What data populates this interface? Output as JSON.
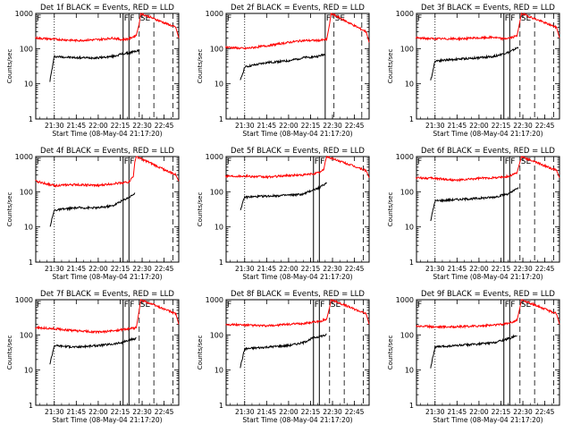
{
  "figure": {
    "yaxis_label": "Counts/sec",
    "xaxis_label": "Start Time (08-May-04 21:17:20)",
    "x_tick_labels": [
      "21:30",
      "21:45",
      "22:00",
      "22:15",
      "22:30",
      "22:45"
    ],
    "y_tick_labels": [
      "1",
      "10",
      "100",
      "1000"
    ],
    "marker_labels": [
      "F",
      "F",
      "SE"
    ],
    "colors": {
      "events": "#000000",
      "lld": "#ff0000"
    }
  },
  "chart_data": [
    {
      "type": "line",
      "title": "Det 1f BLACK = Events, RED = LLD",
      "xlabel": "Start Time (08-May-04 21:17:20)",
      "ylabel": "Counts/sec",
      "y_scale": "log",
      "ylim": [
        1,
        1000
      ],
      "xlim": [
        "21:17:20",
        "22:55:00"
      ],
      "x_ticks": [
        "21:30",
        "21:45",
        "22:00",
        "22:15",
        "22:30",
        "22:45"
      ],
      "markers": [
        {
          "label": "F",
          "time": "22:17",
          "style": "solid"
        },
        {
          "label": "F",
          "time": "22:21",
          "style": "solid"
        },
        {
          "label": "SE",
          "time": "22:28",
          "style": "dashed"
        },
        {
          "label": "",
          "time": "22:38",
          "style": "dashed"
        },
        {
          "label": "",
          "time": "22:51",
          "style": "dashed"
        },
        {
          "label": "",
          "time": "21:30",
          "style": "dotted"
        }
      ],
      "series": [
        {
          "name": "Events",
          "color": "#000000",
          "x": [
            "21:27",
            "21:30",
            "21:45",
            "22:00",
            "22:10",
            "22:16",
            "22:21",
            "22:28"
          ],
          "values": [
            12,
            60,
            55,
            55,
            60,
            70,
            75,
            90
          ]
        },
        {
          "name": "LLD",
          "color": "#ff0000",
          "x": [
            "21:17",
            "21:30",
            "21:45",
            "22:00",
            "22:10",
            "22:16",
            "22:21",
            "22:26",
            "22:28",
            "22:29",
            "22:53",
            "22:55"
          ],
          "values": [
            200,
            185,
            170,
            180,
            200,
            180,
            190,
            240,
            500,
            1000,
            400,
            200
          ]
        }
      ]
    },
    {
      "type": "line",
      "title": "Det 2f BLACK = Events, RED = LLD",
      "xlabel": "Start Time (08-May-04 21:17:20)",
      "ylabel": "Counts/sec",
      "y_scale": "log",
      "ylim": [
        1,
        1000
      ],
      "xlim": [
        "21:17:20",
        "22:55:00"
      ],
      "x_ticks": [
        "21:30",
        "21:45",
        "22:00",
        "22:15",
        "22:30",
        "22:45"
      ],
      "markers": [
        {
          "label": "F",
          "time": "22:25",
          "style": "solid"
        },
        {
          "label": "SE",
          "time": "22:31",
          "style": "dashed"
        },
        {
          "label": "",
          "time": "22:50",
          "style": "dashed"
        },
        {
          "label": "",
          "time": "21:30",
          "style": "dotted"
        }
      ],
      "series": [
        {
          "name": "Events",
          "color": "#000000",
          "x": [
            "21:27",
            "21:30",
            "21:45",
            "22:00",
            "22:10",
            "22:20",
            "22:25"
          ],
          "values": [
            12,
            30,
            40,
            45,
            55,
            60,
            70
          ]
        },
        {
          "name": "LLD",
          "color": "#ff0000",
          "x": [
            "21:17",
            "21:30",
            "21:45",
            "22:00",
            "22:10",
            "22:20",
            "22:26",
            "22:28",
            "22:29",
            "22:53",
            "22:55"
          ],
          "values": [
            110,
            100,
            120,
            150,
            170,
            170,
            180,
            500,
            1000,
            300,
            150
          ]
        }
      ]
    },
    {
      "type": "line",
      "title": "Det 3f BLACK = Events, RED = LLD",
      "xlabel": "Start Time (08-May-04 21:17:20)",
      "ylabel": "Counts/sec",
      "y_scale": "log",
      "ylim": [
        1,
        1000
      ],
      "xlim": [
        "21:17:20",
        "22:55:00"
      ],
      "x_ticks": [
        "21:30",
        "21:45",
        "22:00",
        "22:15",
        "22:30",
        "22:45"
      ],
      "markers": [
        {
          "label": "F",
          "time": "22:17",
          "style": "solid"
        },
        {
          "label": "F",
          "time": "22:21",
          "style": "solid"
        },
        {
          "label": "SE",
          "time": "22:28",
          "style": "dashed"
        },
        {
          "label": "",
          "time": "22:38",
          "style": "dashed"
        },
        {
          "label": "",
          "time": "22:51",
          "style": "dashed"
        },
        {
          "label": "",
          "time": "21:30",
          "style": "dotted"
        }
      ],
      "series": [
        {
          "name": "Events",
          "color": "#000000",
          "x": [
            "21:27",
            "21:30",
            "21:45",
            "22:00",
            "22:10",
            "22:16",
            "22:21",
            "22:27"
          ],
          "values": [
            12,
            45,
            50,
            55,
            60,
            70,
            80,
            110
          ]
        },
        {
          "name": "LLD",
          "color": "#ff0000",
          "x": [
            "21:17",
            "21:30",
            "21:45",
            "22:00",
            "22:10",
            "22:16",
            "22:21",
            "22:26",
            "22:28",
            "22:29",
            "22:53",
            "22:55"
          ],
          "values": [
            200,
            190,
            190,
            200,
            210,
            190,
            200,
            230,
            600,
            1000,
            400,
            200
          ]
        }
      ]
    },
    {
      "type": "line",
      "title": "Det 4f BLACK = Events, RED = LLD",
      "xlabel": "Start Time (08-May-04 21:17:20)",
      "ylabel": "Counts/sec",
      "y_scale": "log",
      "ylim": [
        1,
        1000
      ],
      "xlim": [
        "21:17:20",
        "22:55:00"
      ],
      "x_ticks": [
        "21:30",
        "21:45",
        "22:00",
        "22:15",
        "22:30",
        "22:45"
      ],
      "markers": [
        {
          "label": "F",
          "time": "22:17",
          "style": "solid"
        },
        {
          "label": "F",
          "time": "22:21",
          "style": "solid"
        },
        {
          "label": "",
          "time": "22:51",
          "style": "dashed"
        },
        {
          "label": "",
          "time": "21:30",
          "style": "dotted"
        }
      ],
      "series": [
        {
          "name": "Events",
          "color": "#000000",
          "x": [
            "21:27",
            "21:30",
            "21:45",
            "22:00",
            "22:10",
            "22:16",
            "22:21",
            "22:25"
          ],
          "values": [
            10,
            30,
            35,
            35,
            40,
            55,
            70,
            90
          ]
        },
        {
          "name": "LLD",
          "color": "#ff0000",
          "x": [
            "21:17",
            "21:30",
            "21:45",
            "22:00",
            "22:10",
            "22:16",
            "22:21",
            "22:24",
            "22:25",
            "22:26",
            "22:53",
            "22:55"
          ],
          "values": [
            200,
            150,
            160,
            150,
            170,
            180,
            190,
            280,
            700,
            1000,
            300,
            200
          ]
        }
      ]
    },
    {
      "type": "line",
      "title": "Det 5f BLACK = Events, RED = LLD",
      "xlabel": "Start Time (08-May-04 21:17:20)",
      "ylabel": "Counts/sec",
      "y_scale": "log",
      "ylim": [
        1,
        1000
      ],
      "xlim": [
        "21:17:20",
        "22:55:00"
      ],
      "x_ticks": [
        "21:30",
        "21:45",
        "22:00",
        "22:15",
        "22:30",
        "22:45"
      ],
      "markers": [
        {
          "label": "F",
          "time": "22:17",
          "style": "solid"
        },
        {
          "label": "F",
          "time": "22:21",
          "style": "solid"
        },
        {
          "label": "",
          "time": "22:51",
          "style": "dashed"
        },
        {
          "label": "",
          "time": "21:30",
          "style": "dotted"
        }
      ],
      "series": [
        {
          "name": "Events",
          "color": "#000000",
          "x": [
            "21:27",
            "21:30",
            "21:45",
            "22:00",
            "22:10",
            "22:16",
            "22:21",
            "22:26"
          ],
          "values": [
            30,
            70,
            75,
            80,
            85,
            110,
            130,
            180
          ]
        },
        {
          "name": "LLD",
          "color": "#ff0000",
          "x": [
            "21:17",
            "21:30",
            "21:45",
            "22:00",
            "22:10",
            "22:16",
            "22:21",
            "22:24",
            "22:25",
            "22:26",
            "22:53",
            "22:55"
          ],
          "values": [
            280,
            280,
            260,
            290,
            300,
            320,
            350,
            420,
            700,
            1000,
            400,
            250
          ]
        }
      ]
    },
    {
      "type": "line",
      "title": "Det 6f BLACK = Events, RED = LLD",
      "xlabel": "Start Time (08-May-04 21:17:20)",
      "ylabel": "Counts/sec",
      "y_scale": "log",
      "ylim": [
        1,
        1000
      ],
      "xlim": [
        "21:17:20",
        "22:55:00"
      ],
      "x_ticks": [
        "21:30",
        "21:45",
        "22:00",
        "22:15",
        "22:30",
        "22:45"
      ],
      "markers": [
        {
          "label": "F",
          "time": "22:17",
          "style": "solid"
        },
        {
          "label": "F",
          "time": "22:21",
          "style": "solid"
        },
        {
          "label": "SE",
          "time": "22:28",
          "style": "dashed"
        },
        {
          "label": "",
          "time": "22:38",
          "style": "dashed"
        },
        {
          "label": "",
          "time": "22:51",
          "style": "dashed"
        },
        {
          "label": "",
          "time": "21:30",
          "style": "dotted"
        }
      ],
      "series": [
        {
          "name": "Events",
          "color": "#000000",
          "x": [
            "21:27",
            "21:30",
            "21:45",
            "22:00",
            "22:10",
            "22:16",
            "22:21",
            "22:27"
          ],
          "values": [
            15,
            55,
            60,
            65,
            70,
            80,
            90,
            130
          ]
        },
        {
          "name": "LLD",
          "color": "#ff0000",
          "x": [
            "21:17",
            "21:30",
            "21:45",
            "22:00",
            "22:10",
            "22:16",
            "22:21",
            "22:26",
            "22:28",
            "22:29",
            "22:53",
            "22:55"
          ],
          "values": [
            250,
            240,
            210,
            240,
            250,
            260,
            280,
            350,
            700,
            1000,
            400,
            250
          ]
        }
      ]
    },
    {
      "type": "line",
      "title": "Det 7f BLACK = Events, RED = LLD",
      "xlabel": "Start Time (08-May-04 21:17:20)",
      "ylabel": "Counts/sec",
      "y_scale": "log",
      "ylim": [
        1,
        1000
      ],
      "xlim": [
        "21:17:20",
        "22:55:00"
      ],
      "x_ticks": [
        "21:30",
        "21:45",
        "22:00",
        "22:15",
        "22:30",
        "22:45"
      ],
      "markers": [
        {
          "label": "F",
          "time": "22:17",
          "style": "solid"
        },
        {
          "label": "F",
          "time": "22:21",
          "style": "solid"
        },
        {
          "label": "SE",
          "time": "22:28",
          "style": "dashed"
        },
        {
          "label": "",
          "time": "22:38",
          "style": "dashed"
        },
        {
          "label": "",
          "time": "22:51",
          "style": "dashed"
        },
        {
          "label": "",
          "time": "21:30",
          "style": "dotted"
        }
      ],
      "series": [
        {
          "name": "Events",
          "color": "#000000",
          "x": [
            "21:27",
            "21:30",
            "21:45",
            "22:00",
            "22:10",
            "22:16",
            "22:21",
            "22:26"
          ],
          "values": [
            15,
            50,
            45,
            50,
            55,
            60,
            70,
            80
          ]
        },
        {
          "name": "LLD",
          "color": "#ff0000",
          "x": [
            "21:17",
            "21:30",
            "21:45",
            "22:00",
            "22:10",
            "22:16",
            "22:21",
            "22:26",
            "22:28",
            "22:29",
            "22:53",
            "22:55"
          ],
          "values": [
            160,
            150,
            130,
            120,
            130,
            140,
            150,
            160,
            500,
            1000,
            400,
            200
          ]
        }
      ]
    },
    {
      "type": "line",
      "title": "Det 8f BLACK = Events, RED = LLD",
      "xlabel": "Start Time (08-May-04 21:17:20)",
      "ylabel": "Counts/sec",
      "y_scale": "log",
      "ylim": [
        1,
        1000
      ],
      "xlim": [
        "21:17:20",
        "22:55:00"
      ],
      "x_ticks": [
        "21:30",
        "21:45",
        "22:00",
        "22:15",
        "22:30",
        "22:45"
      ],
      "markers": [
        {
          "label": "F",
          "time": "22:17",
          "style": "solid"
        },
        {
          "label": "F",
          "time": "22:21",
          "style": "solid"
        },
        {
          "label": "SE",
          "time": "22:28",
          "style": "dashed"
        },
        {
          "label": "",
          "time": "22:38",
          "style": "dashed"
        },
        {
          "label": "",
          "time": "22:51",
          "style": "dashed"
        },
        {
          "label": "",
          "time": "21:30",
          "style": "dotted"
        }
      ],
      "series": [
        {
          "name": "Events",
          "color": "#000000",
          "x": [
            "21:27",
            "21:30",
            "21:45",
            "22:00",
            "22:10",
            "22:16",
            "22:21",
            "22:26"
          ],
          "values": [
            12,
            40,
            45,
            50,
            60,
            80,
            90,
            100
          ]
        },
        {
          "name": "LLD",
          "color": "#ff0000",
          "x": [
            "21:17",
            "21:30",
            "21:45",
            "22:00",
            "22:10",
            "22:16",
            "22:21",
            "22:26",
            "22:28",
            "22:29",
            "22:53",
            "22:55"
          ],
          "values": [
            200,
            190,
            180,
            200,
            210,
            230,
            240,
            280,
            600,
            1000,
            400,
            200
          ]
        }
      ]
    },
    {
      "type": "line",
      "title": "Det 9f BLACK = Events, RED = LLD",
      "xlabel": "Start Time (08-May-04 21:17:20)",
      "ylabel": "Counts/sec",
      "y_scale": "log",
      "ylim": [
        1,
        1000
      ],
      "xlim": [
        "21:17:20",
        "22:55:00"
      ],
      "x_ticks": [
        "21:30",
        "21:45",
        "22:00",
        "22:15",
        "22:30",
        "22:45"
      ],
      "markers": [
        {
          "label": "F",
          "time": "22:17",
          "style": "solid"
        },
        {
          "label": "F",
          "time": "22:21",
          "style": "solid"
        },
        {
          "label": "SE",
          "time": "22:28",
          "style": "dashed"
        },
        {
          "label": "",
          "time": "22:38",
          "style": "dashed"
        },
        {
          "label": "",
          "time": "22:51",
          "style": "dashed"
        },
        {
          "label": "",
          "time": "21:30",
          "style": "dotted"
        }
      ],
      "series": [
        {
          "name": "Events",
          "color": "#000000",
          "x": [
            "21:27",
            "21:30",
            "21:45",
            "22:00",
            "22:10",
            "22:16",
            "22:21",
            "22:26"
          ],
          "values": [
            12,
            45,
            50,
            55,
            60,
            70,
            80,
            100
          ]
        },
        {
          "name": "LLD",
          "color": "#ff0000",
          "x": [
            "21:17",
            "21:30",
            "21:45",
            "22:00",
            "22:10",
            "22:16",
            "22:21",
            "22:26",
            "22:28",
            "22:29",
            "22:53",
            "22:55"
          ],
          "values": [
            180,
            170,
            170,
            180,
            190,
            200,
            220,
            260,
            600,
            1000,
            400,
            200
          ]
        }
      ]
    }
  ]
}
